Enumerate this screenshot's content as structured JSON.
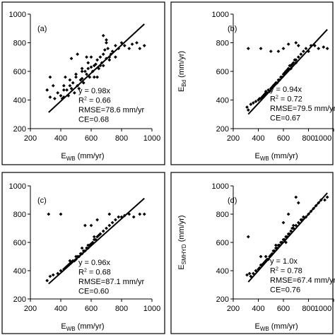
{
  "chart_data": [
    {
      "panel_label": "(a)",
      "type": "scatter",
      "xlabel_main": "E",
      "xlabel_sub": "WB",
      "xlabel_unit": " (mm/yr)",
      "ylabel_main": "",
      "ylabel_sub": "",
      "ylabel_unit": "",
      "xlim": [
        200,
        1000
      ],
      "ylim": [
        200,
        1000
      ],
      "xticks": [
        "200",
        "400",
        "600",
        "800",
        "1000"
      ],
      "yticks": [
        "200",
        "400",
        "600",
        "800",
        "1000"
      ],
      "fit_slope": 0.98,
      "stats": {
        "eq": "y = 0.98x",
        "r2_prefix": "R",
        "r2_sup": "2",
        "r2_value": " = 0.66",
        "rmse": "RMSE=78.6 mm/yr",
        "ce": "CE=0.68"
      },
      "x": [
        310,
        330,
        350,
        380,
        400,
        410,
        420,
        430,
        440,
        450,
        460,
        470,
        480,
        490,
        500,
        510,
        520,
        530,
        540,
        550,
        560,
        570,
        580,
        590,
        600,
        610,
        620,
        630,
        640,
        650,
        660,
        670,
        680,
        690,
        700,
        710,
        720,
        730,
        740,
        760,
        780,
        800,
        820,
        850,
        870,
        900,
        920,
        950,
        330,
        360,
        420,
        470,
        510,
        540,
        570,
        620,
        660,
        700,
        420,
        460,
        500,
        540,
        580,
        600,
        640,
        680,
        720,
        760,
        680,
        700
      ],
      "y": [
        470,
        420,
        500,
        450,
        430,
        410,
        420,
        560,
        470,
        430,
        500,
        480,
        520,
        450,
        560,
        500,
        480,
        540,
        550,
        520,
        600,
        580,
        620,
        560,
        630,
        600,
        640,
        650,
        680,
        620,
        700,
        660,
        720,
        750,
        690,
        760,
        700,
        720,
        740,
        780,
        760,
        800,
        780,
        760,
        790,
        800,
        760,
        780,
        560,
        410,
        470,
        690,
        720,
        600,
        700,
        560,
        640,
        800,
        500,
        540,
        580,
        620,
        660,
        700,
        560,
        640,
        680,
        700,
        850,
        820
      ]
    },
    {
      "panel_label": "(b)",
      "type": "scatter",
      "xlabel_main": "E",
      "xlabel_sub": "WB",
      "xlabel_unit": " (mm/yr)",
      "ylabel_main": "E",
      "ylabel_sub": "Bd",
      "ylabel_unit": " (mm/yr)",
      "xlim": [
        200,
        1000
      ],
      "ylim": [
        200,
        1000
      ],
      "xticks": [
        "200",
        "400",
        "600",
        "800",
        "1000"
      ],
      "yticks": [
        "200",
        "400",
        "600",
        "800",
        "1000"
      ],
      "fit_slope": 0.94,
      "stats": {
        "eq": "y = 0.94x",
        "r2_prefix": "R",
        "r2_sup": "2",
        "r2_value": " = 0.72",
        "rmse": "RMSE=79.5 mm/yr",
        "ce": "CE=0.67"
      },
      "x": [
        310,
        320,
        340,
        360,
        380,
        400,
        410,
        420,
        430,
        440,
        450,
        460,
        470,
        480,
        490,
        500,
        510,
        520,
        530,
        540,
        550,
        560,
        570,
        580,
        590,
        600,
        610,
        620,
        630,
        640,
        650,
        660,
        670,
        680,
        690,
        700,
        720,
        740,
        760,
        780,
        800,
        820,
        850,
        880,
        920,
        950,
        320,
        420,
        500,
        560,
        600,
        640,
        700,
        720,
        460,
        520,
        580,
        620,
        660,
        700
      ],
      "y": [
        350,
        760,
        370,
        380,
        390,
        400,
        410,
        410,
        420,
        430,
        440,
        450,
        450,
        470,
        460,
        480,
        490,
        500,
        510,
        520,
        520,
        540,
        540,
        560,
        560,
        580,
        590,
        600,
        610,
        620,
        640,
        640,
        650,
        660,
        680,
        680,
        700,
        720,
        740,
        760,
        740,
        780,
        780,
        760,
        770,
        760,
        330,
        760,
        740,
        740,
        760,
        790,
        800,
        780,
        460,
        500,
        560,
        600,
        620,
        660
      ]
    },
    {
      "panel_label": "(c)",
      "type": "scatter",
      "xlabel_main": "E",
      "xlabel_sub": "WB",
      "xlabel_unit": " (mm/yr)",
      "ylabel_main": "",
      "ylabel_sub": "",
      "ylabel_unit": "",
      "xlim": [
        200,
        1000
      ],
      "ylim": [
        200,
        1000
      ],
      "xticks": [
        "200",
        "400",
        "600",
        "800",
        "1000"
      ],
      "yticks": [
        "200",
        "400",
        "600",
        "800",
        "1000"
      ],
      "fit_slope": 0.96,
      "stats": {
        "eq": "y = 0.96x",
        "r2_prefix": "R",
        "r2_sup": "2",
        "r2_value": " = 0.68",
        "rmse": "RMSE=87.1 mm/yr",
        "ce": "CE=0.60"
      },
      "x": [
        310,
        330,
        350,
        380,
        400,
        420,
        430,
        440,
        450,
        460,
        470,
        480,
        490,
        500,
        510,
        520,
        530,
        540,
        550,
        560,
        570,
        580,
        590,
        600,
        610,
        620,
        630,
        640,
        650,
        660,
        680,
        700,
        720,
        740,
        760,
        780,
        800,
        820,
        850,
        880,
        920,
        950,
        320,
        400,
        560,
        600,
        640,
        720,
        460,
        500,
        540,
        580,
        620,
        660
      ],
      "y": [
        330,
        360,
        370,
        380,
        400,
        410,
        420,
        430,
        440,
        450,
        460,
        470,
        470,
        480,
        500,
        500,
        520,
        520,
        540,
        540,
        560,
        560,
        580,
        590,
        600,
        620,
        620,
        640,
        650,
        660,
        680,
        700,
        720,
        740,
        760,
        780,
        780,
        790,
        800,
        780,
        800,
        800,
        800,
        800,
        720,
        720,
        760,
        800,
        470,
        500,
        560,
        580,
        640,
        660
      ]
    },
    {
      "panel_label": "(d)",
      "type": "scatter",
      "xlabel_main": "E",
      "xlabel_sub": "WB",
      "xlabel_unit": " (mm/yr)",
      "ylabel_main": "E",
      "ylabel_sub": "SMHYD",
      "ylabel_unit": " (mm/yr)",
      "xlim": [
        200,
        1000
      ],
      "ylim": [
        200,
        1000
      ],
      "xticks": [
        "200",
        "400",
        "600",
        "800",
        "1000"
      ],
      "yticks": [
        "200",
        "400",
        "600",
        "800",
        "1000"
      ],
      "fit_slope": 1.0,
      "stats": {
        "eq": "y = 1.0x",
        "r2_prefix": "R",
        "r2_sup": "2",
        "r2_value": " = 0.78",
        "rmse": "RMSE=67.4 mm/yr",
        "ce": "CE=0.76"
      },
      "x": [
        310,
        320,
        340,
        360,
        380,
        400,
        410,
        420,
        430,
        440,
        450,
        460,
        470,
        480,
        490,
        500,
        510,
        520,
        530,
        540,
        550,
        560,
        570,
        580,
        590,
        600,
        610,
        620,
        630,
        640,
        650,
        660,
        670,
        680,
        700,
        720,
        740,
        760,
        780,
        800,
        820,
        840,
        860,
        880,
        900,
        930,
        950,
        330,
        420,
        600,
        640,
        700,
        720,
        750,
        460,
        540,
        620,
        680
      ],
      "y": [
        370,
        640,
        360,
        380,
        400,
        410,
        420,
        440,
        440,
        450,
        460,
        470,
        480,
        480,
        500,
        510,
        520,
        540,
        540,
        560,
        560,
        580,
        580,
        600,
        600,
        620,
        620,
        640,
        640,
        660,
        660,
        680,
        700,
        700,
        720,
        740,
        760,
        780,
        780,
        800,
        820,
        840,
        860,
        880,
        900,
        900,
        920,
        380,
        500,
        740,
        800,
        920,
        880,
        760,
        500,
        580,
        600,
        720
      ]
    }
  ]
}
